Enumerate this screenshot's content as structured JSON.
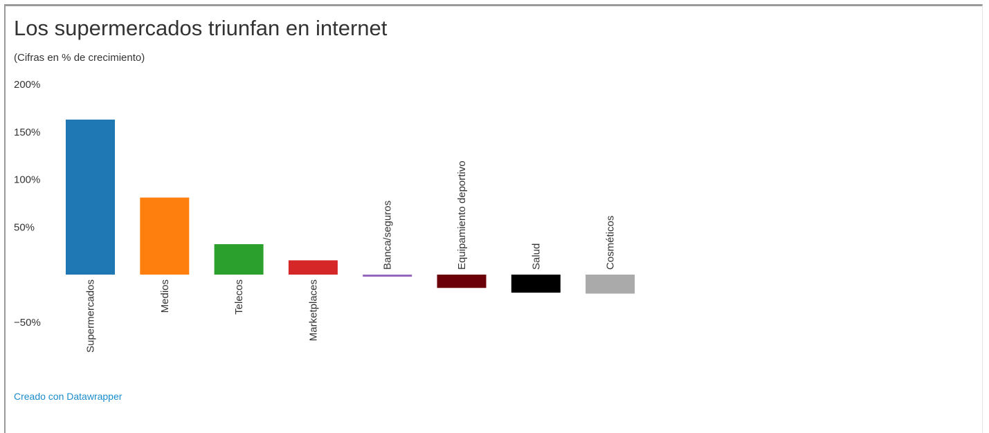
{
  "title": "Los supermercados triunfan en internet",
  "subtitle": "(Cifras en % de crecimiento)",
  "credit": "Creado con Datawrapper",
  "chart_data": {
    "type": "bar",
    "title": "Los supermercados triunfan en internet",
    "subtitle": "(Cifras en % de crecimiento)",
    "xlabel": "",
    "ylabel": "",
    "ylim": [
      -50,
      200
    ],
    "yticks": [
      200,
      150,
      100,
      50,
      -50
    ],
    "ytick_labels": [
      "200%",
      "150%",
      "100%",
      "50%",
      "−50%"
    ],
    "grid": false,
    "legend": "none",
    "categories": [
      "Supermercados",
      "Medios",
      "Telecos",
      "Marketplaces",
      "Banca/seguros",
      "Equipamiento deportivo",
      "Salud",
      "Cosméticos"
    ],
    "values": [
      163,
      81,
      32,
      15,
      -2,
      -14,
      -19,
      -20
    ],
    "colors": [
      "#1f77b4",
      "#ff7f0e",
      "#2ca02c",
      "#d62728",
      "#9467bd",
      "#6b0008",
      "#000000",
      "#aaaaaa"
    ]
  }
}
